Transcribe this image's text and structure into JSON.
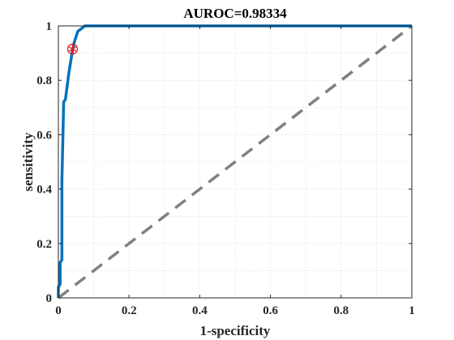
{
  "chart_data": {
    "type": "line",
    "title": "AUROC=0.98334",
    "xlabel": "1-specificity",
    "ylabel": "sensitivity",
    "xlim": [
      0,
      1
    ],
    "ylim": [
      0,
      1
    ],
    "x_ticks": [
      "0",
      "0.2",
      "0.4",
      "0.6",
      "0.8",
      "1"
    ],
    "y_ticks": [
      "0",
      "0.2",
      "0.4",
      "0.6",
      "0.8",
      "1"
    ],
    "grid": true,
    "box": true,
    "series": [
      {
        "type": "line",
        "color": "#0072bd",
        "style": "solid",
        "x": [
          0,
          0.0,
          0.005,
          0.005,
          0.01,
          0.01,
          0.015,
          0.02,
          0.025,
          0.03,
          0.035,
          0.04,
          0.045,
          0.05,
          0.055,
          0.06,
          0.065,
          0.07,
          0.075,
          0.08,
          0.1,
          0.3,
          0.6,
          1.0
        ],
        "y": [
          0,
          0.04,
          0.05,
          0.13,
          0.14,
          0.43,
          0.72,
          0.73,
          0.78,
          0.83,
          0.87,
          0.91,
          0.94,
          0.96,
          0.98,
          0.985,
          0.99,
          0.995,
          1.0,
          1.0,
          1.0,
          1.0,
          1.0,
          1.0
        ]
      },
      {
        "type": "line",
        "color": "#808080",
        "style": "dashed",
        "x": [
          0,
          1
        ],
        "y": [
          0,
          1
        ]
      }
    ],
    "marker": {
      "x": 0.04,
      "y": 0.915,
      "color": "#e31a1c",
      "shape": "circle-asterisk"
    }
  }
}
